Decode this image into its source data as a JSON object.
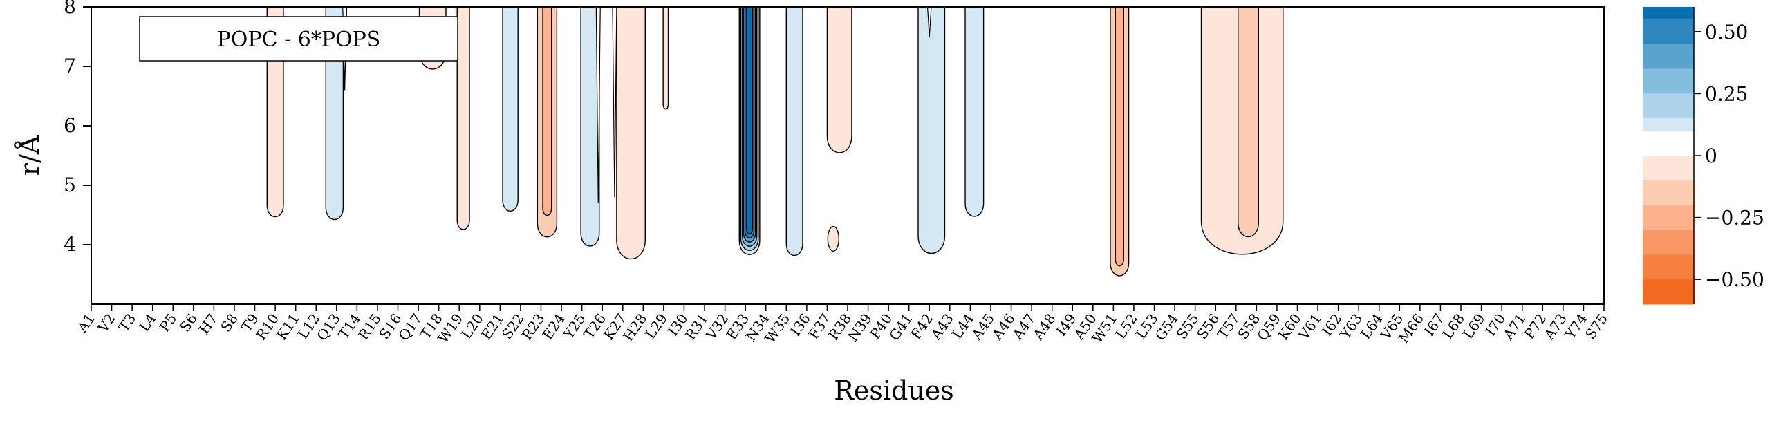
{
  "chart_data": {
    "type": "contour",
    "legend_label": "POPC - 6*POPS",
    "xlabel": "Residues",
    "ylabel": "r/Å",
    "ylim": [
      3.0,
      8.0
    ],
    "yticks": [
      4,
      5,
      6,
      7,
      8
    ],
    "residues": [
      "A1",
      "V2",
      "T3",
      "L4",
      "P5",
      "S6",
      "H7",
      "S8",
      "T9",
      "R10",
      "K11",
      "L12",
      "Q13",
      "T14",
      "R15",
      "S16",
      "Q17",
      "T18",
      "W19",
      "L20",
      "E21",
      "S22",
      "R23",
      "E24",
      "Y25",
      "T26",
      "K27",
      "H28",
      "L29",
      "I30",
      "R31",
      "V32",
      "E33",
      "N34",
      "W35",
      "I36",
      "F37",
      "R38",
      "N39",
      "P40",
      "G41",
      "F42",
      "A43",
      "L44",
      "A45",
      "A46",
      "A47",
      "A48",
      "I49",
      "A50",
      "W51",
      "L52",
      "L53",
      "G54",
      "S55",
      "S56",
      "T57",
      "S58",
      "Q59",
      "K60",
      "V61",
      "I62",
      "Y63",
      "L64",
      "V65",
      "M66",
      "I67",
      "L68",
      "L69",
      "I70",
      "A71",
      "P72",
      "A73",
      "Y74",
      "S75"
    ],
    "colorbar": {
      "ticks": [
        0.5,
        0.25,
        0,
        -0.25,
        -0.5
      ],
      "tick_labels": [
        "0.50",
        "0.25",
        "0",
        "−0.25",
        "−0.50"
      ],
      "levels": [
        0.6,
        0.55,
        0.5,
        0.45,
        0.4,
        0.35,
        0.3,
        0.25,
        0.2,
        0.15,
        0.1,
        0.05,
        -0.05,
        -0.1,
        -0.15,
        -0.2,
        -0.25,
        -0.3,
        -0.35,
        -0.4,
        -0.45,
        -0.5,
        -0.55,
        -0.6
      ],
      "range": [
        -0.6,
        0.6
      ]
    },
    "colors": {
      "pos": [
        "#d4e8f3",
        "#aed3e8",
        "#84bcdc",
        "#5aa3cf",
        "#2e88bf",
        "#0a6fb0"
      ],
      "neg": [
        "#fde5da",
        "#fccdb3",
        "#fbb28d",
        "#f99866",
        "#f77f3f",
        "#f26a1f"
      ]
    },
    "regions": [
      {
        "c": 10,
        "w": 0.8,
        "min_r": 4.45,
        "v": -0.05
      },
      {
        "c": 12.9,
        "w": 0.85,
        "min_r": 4.4,
        "v": 0.05,
        "notch": {
          "x": 13.4,
          "r": 6.6
        }
      },
      {
        "c": 17.7,
        "w": 1.3,
        "min_r": 6.9,
        "v": -0.05
      },
      {
        "c": 19.2,
        "w": 0.6,
        "min_r": 4.25,
        "v": -0.05
      },
      {
        "c": 21.5,
        "w": 0.75,
        "min_r": 4.55,
        "v": 0.05
      },
      {
        "c": 23.3,
        "w": 0.95,
        "min_r": 4.1,
        "v": -0.1,
        "inner_min": 4.5
      },
      {
        "c": 25.4,
        "w": 0.9,
        "min_r": 3.95,
        "v": 0.05,
        "notch": {
          "x": 25.8,
          "r": 4.7
        }
      },
      {
        "c": 27.4,
        "w": 1.4,
        "min_r": 3.7,
        "v": -0.05,
        "notch": {
          "x": 26.6,
          "r": 4.8
        }
      },
      {
        "c": 29.1,
        "w": 0.25,
        "min_r": 6.3,
        "v": -0.05
      },
      {
        "c": 33.2,
        "w": 1.0,
        "min_r": 3.8,
        "v": 0.3,
        "nested": 6
      },
      {
        "c": 35.4,
        "w": 0.8,
        "min_r": 3.8,
        "v": 0.05
      },
      {
        "c": 37.6,
        "w": 1.2,
        "min_r": 5.5,
        "v": -0.05,
        "mixed": true
      },
      {
        "c": 42.1,
        "w": 1.3,
        "min_r": 3.8,
        "v": 0.05,
        "notch": {
          "x": 42.0,
          "r": 7.5
        }
      },
      {
        "c": 44.2,
        "w": 0.9,
        "min_r": 4.45,
        "v": 0.05
      },
      {
        "c": 51.3,
        "w": 0.9,
        "min_r": 3.45,
        "v": -0.1,
        "inner_min": 3.65
      },
      {
        "c": 57.3,
        "w": 4.0,
        "min_r": 3.7,
        "v": -0.05,
        "inner": {
          "c": 57.6,
          "w": 1.0,
          "min_r": 4.1
        }
      }
    ],
    "island": {
      "x": 37.3,
      "r": 4.1,
      "v": -0.05
    }
  }
}
